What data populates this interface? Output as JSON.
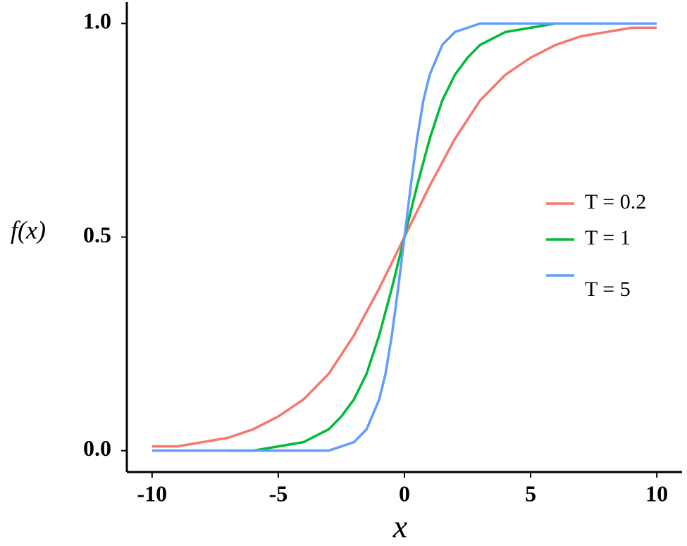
{
  "chart_data": {
    "type": "line",
    "xlabel": "x",
    "ylabel": "f(x)",
    "xlim": [
      -11,
      11
    ],
    "ylim": [
      -0.05,
      1.05
    ],
    "xticks": [
      -10,
      -5,
      0,
      5,
      10
    ],
    "yticks": [
      {
        "value": 0,
        "label": "0.0"
      },
      {
        "value": 0.5,
        "label": "0.5"
      },
      {
        "value": 1,
        "label": "1.0"
      }
    ],
    "grid": false,
    "legend": "right",
    "series": [
      {
        "name": "T = 0.2",
        "color": "#f8766d",
        "x": [
          -10,
          -9,
          -8,
          -7,
          -6,
          -5,
          -4,
          -3,
          -2,
          -1,
          0,
          1,
          2,
          3,
          4,
          5,
          6,
          7,
          8,
          9,
          10
        ],
        "values": [
          0.01,
          0.01,
          0.02,
          0.03,
          0.05,
          0.08,
          0.12,
          0.18,
          0.27,
          0.38,
          0.5,
          0.62,
          0.73,
          0.82,
          0.88,
          0.92,
          0.95,
          0.97,
          0.98,
          0.99,
          0.99
        ]
      },
      {
        "name": "T = 1",
        "color": "#00ba38",
        "x": [
          -7,
          -6,
          -5,
          -4,
          -3,
          -2.5,
          -2,
          -1.5,
          -1,
          -0.5,
          0,
          0.5,
          1,
          1.5,
          2,
          2.5,
          3,
          4,
          5,
          6
        ],
        "values": [
          0,
          0,
          0.01,
          0.02,
          0.05,
          0.08,
          0.12,
          0.18,
          0.27,
          0.38,
          0.5,
          0.62,
          0.73,
          0.82,
          0.88,
          0.92,
          0.95,
          0.98,
          0.99,
          1
        ]
      },
      {
        "name": "T = 5",
        "color": "#619cff",
        "x": [
          -10,
          -4,
          -3,
          -2,
          -1.5,
          -1,
          -0.75,
          -0.5,
          -0.25,
          0,
          0.25,
          0.5,
          0.75,
          1,
          1.5,
          2,
          3,
          10
        ],
        "values": [
          0,
          0,
          0,
          0.02,
          0.05,
          0.12,
          0.18,
          0.27,
          0.38,
          0.5,
          0.62,
          0.73,
          0.82,
          0.88,
          0.95,
          0.98,
          1,
          1
        ]
      }
    ]
  }
}
